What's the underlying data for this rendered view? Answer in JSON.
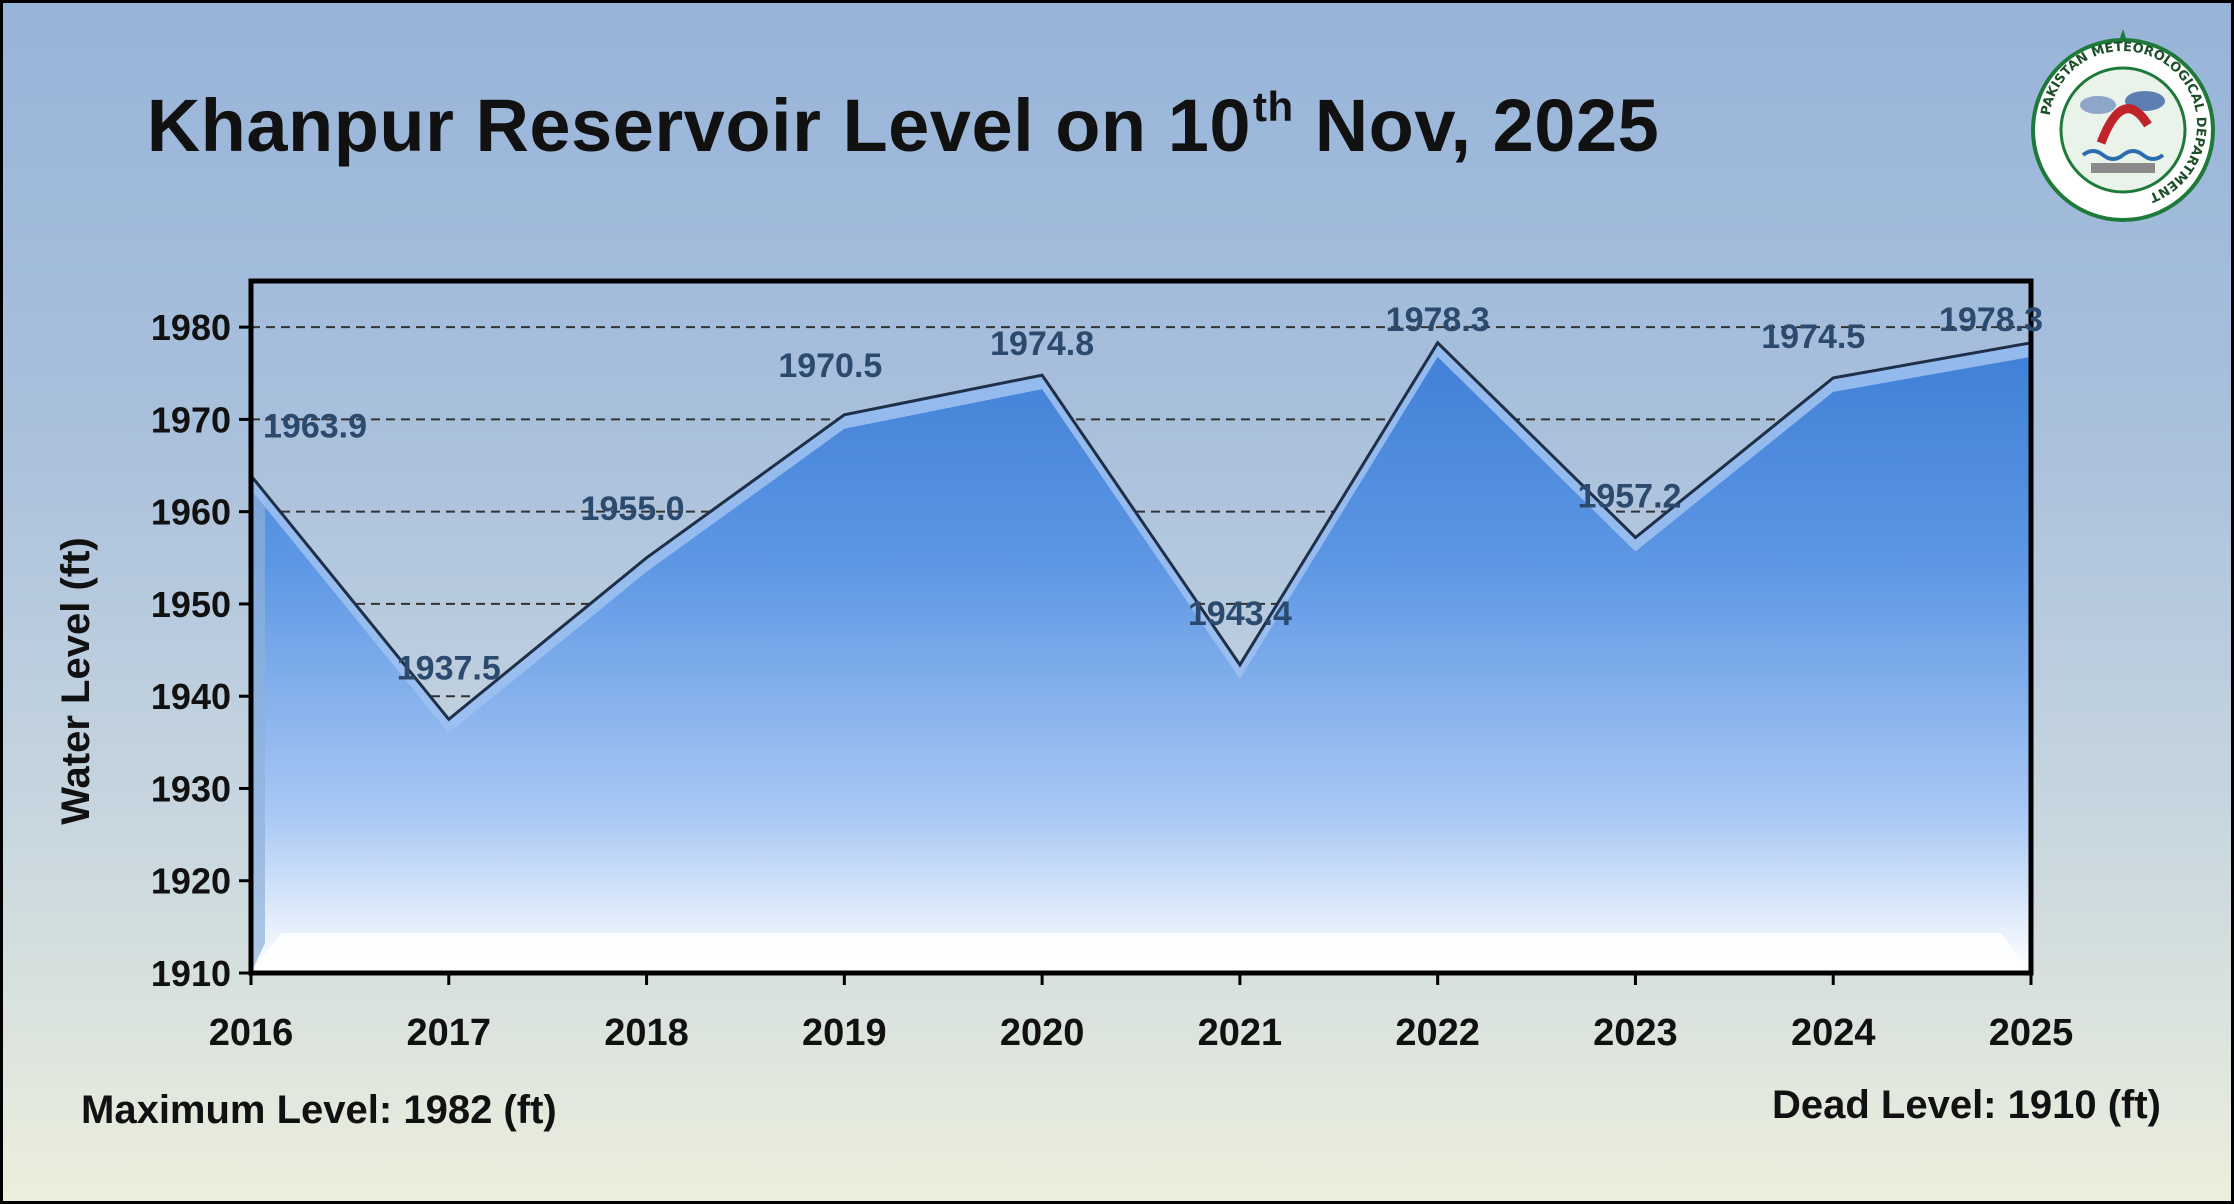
{
  "title": {
    "main": "Khanpur Reservoir Level on 10",
    "sup": "th",
    "rest": " Nov, 2025"
  },
  "logo": {
    "icon": "pmd-seal-icon",
    "text_outer": "PAKISTAN METEOROLOGICAL DEPARTMENT"
  },
  "footer": {
    "max_level": "Maximum Level: 1982 (ft)",
    "dead_level": "Dead Level: 1910 (ft)"
  },
  "colors": {
    "fill_top": "#4f8fe0",
    "fill_bottom": "#ffffff",
    "line": "#1f2f48",
    "data_label": "#2b4a6e",
    "frame": "#000000"
  },
  "chart_data": {
    "type": "area",
    "title": "Khanpur Reservoir Level on 10th Nov, 2025",
    "xlabel": "",
    "ylabel": "Water Level (ft)",
    "categories": [
      "2016",
      "2017",
      "2018",
      "2019",
      "2020",
      "2021",
      "2022",
      "2023",
      "2024",
      "2025"
    ],
    "series": [
      {
        "values": [
          1963.9,
          1937.5,
          1955.0,
          1970.5,
          1974.8,
          1943.4,
          1978.3,
          1957.2,
          1974.5,
          1978.3
        ],
        "labels": [
          "1963.9",
          "1937.5",
          "1955.0",
          "1970.5",
          "1974.8",
          "1943.4",
          "1978.3",
          "1957.2",
          "1974.5",
          "1978.3"
        ]
      }
    ],
    "ylim": [
      1910,
      1985
    ],
    "yticks": [
      "1910",
      "1920",
      "1930",
      "1940",
      "1950",
      "1960",
      "1970",
      "1980"
    ],
    "ytick_values": [
      1910,
      1920,
      1930,
      1940,
      1950,
      1960,
      1970,
      1980
    ],
    "grid": true,
    "grid_style": "dashed",
    "legend": "none"
  }
}
